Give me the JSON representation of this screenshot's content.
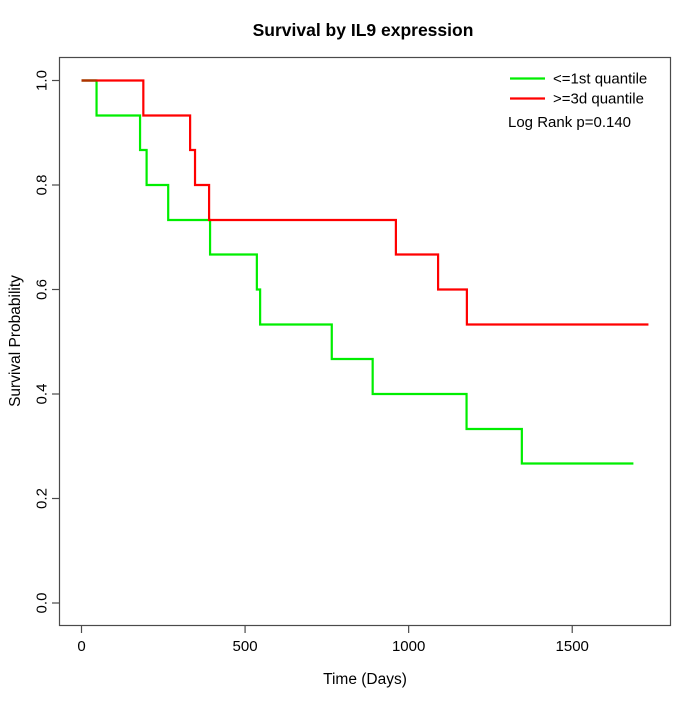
{
  "title": "Survival by IL9 expression",
  "chart_data": {
    "type": "line",
    "subtype": "kaplan-meier-step",
    "title": "Survival by IL9 expression",
    "xlabel": "Time (Days)",
    "ylabel": "Survival Probability",
    "xlim": [
      0,
      1750
    ],
    "ylim": [
      0.0,
      1.0
    ],
    "grid": false,
    "legend_position": "top-right",
    "annotation": "Log Rank p=0.140",
    "x_ticks": [
      0,
      500,
      1000,
      1500
    ],
    "x_tick_labels": [
      "0",
      "500",
      "1000",
      "1500"
    ],
    "y_ticks": [
      0.0,
      0.2,
      0.4,
      0.6,
      0.8,
      1.0
    ],
    "y_tick_labels": [
      "0.0",
      "0.2",
      "0.4",
      "0.6",
      "0.8",
      "1.0"
    ],
    "overlap_segment_color": "#b03000",
    "axis_color": "#4a4a4a",
    "series": [
      {
        "name": "<=1st quantile",
        "color": "#00ee00",
        "start": [
          0,
          1.0
        ],
        "steps": [
          [
            46,
            0.933
          ],
          [
            179,
            0.867
          ],
          [
            199,
            0.8
          ],
          [
            265,
            0.733
          ],
          [
            393,
            0.667
          ],
          [
            536,
            0.6
          ],
          [
            546,
            0.533
          ],
          [
            765,
            0.467
          ],
          [
            890,
            0.4
          ],
          [
            1177,
            0.333
          ],
          [
            1346,
            0.267
          ]
        ],
        "end_time": 1687,
        "end_value": 0.267
      },
      {
        "name": ">=3d quantile",
        "color": "#ff0000",
        "start": [
          0,
          1.0
        ],
        "steps": [
          [
            189,
            0.933
          ],
          [
            332,
            0.867
          ],
          [
            347,
            0.8
          ],
          [
            390,
            0.733
          ],
          [
            961,
            0.667
          ],
          [
            1090,
            0.6
          ],
          [
            1178,
            0.533
          ]
        ],
        "end_time": 1733,
        "end_value": 0.533
      }
    ]
  }
}
